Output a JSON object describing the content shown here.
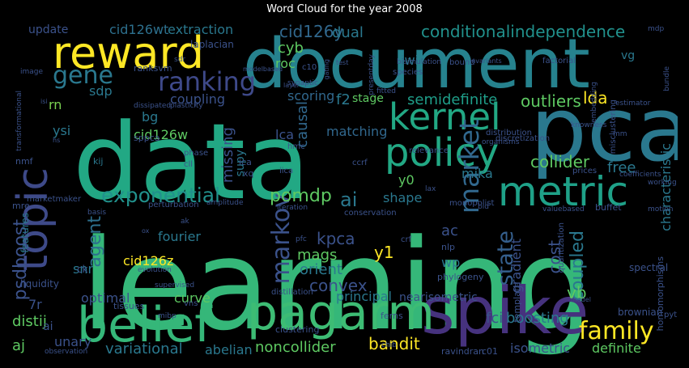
{
  "title": "Word Cloud for the year 2008",
  "colors": {
    "background": "#000000",
    "palette": [
      "#440154",
      "#3b528b",
      "#21918c",
      "#5ec962",
      "#fde725"
    ]
  },
  "words": [
    {
      "text": "learning",
      "color": "#35b779"
    },
    {
      "text": "data",
      "color": "#22a884"
    },
    {
      "text": "document",
      "color": "#26828e"
    },
    {
      "text": "pca",
      "color": "#2a788e"
    },
    {
      "text": "spike",
      "color": "#46327e"
    },
    {
      "text": "reward",
      "color": "#fde725"
    },
    {
      "text": "topic",
      "color": "#3e4a89"
    },
    {
      "text": "pagarm",
      "color": "#3dbc74"
    },
    {
      "text": "belief",
      "color": "#35b779"
    },
    {
      "text": "metric",
      "color": "#1fa188"
    },
    {
      "text": "policy",
      "color": "#22a884"
    },
    {
      "text": "kernel",
      "color": "#22a884"
    },
    {
      "text": "family",
      "color": "#fde725"
    },
    {
      "text": "ranking",
      "color": "#3e4989"
    },
    {
      "text": "gene",
      "color": "#2a788e"
    },
    {
      "text": "market",
      "color": "#31688e"
    },
    {
      "text": "exponential",
      "color": "#21918c"
    },
    {
      "text": "markov",
      "color": "#3b528b"
    },
    {
      "text": "agent",
      "color": "#2d708e"
    },
    {
      "text": "state",
      "color": "#355f8d"
    },
    {
      "text": "pomdp",
      "color": "#5ec962"
    },
    {
      "text": "conditionalindependence",
      "color": "#21918c"
    },
    {
      "text": "cid126y",
      "color": "#31688e"
    },
    {
      "text": "cid126wt",
      "color": "#2d708e"
    },
    {
      "text": "extraction",
      "color": "#2a788e"
    },
    {
      "text": "update",
      "color": "#3b528b"
    },
    {
      "text": "dual",
      "color": "#2a788e"
    },
    {
      "text": "cyb",
      "color": "#5ec962"
    },
    {
      "text": "roc",
      "color": "#5ec962"
    },
    {
      "text": "jwi",
      "color": "#2a788e"
    },
    {
      "text": "sdp",
      "color": "#2a788e"
    },
    {
      "text": "coupling",
      "color": "#3b528b"
    },
    {
      "text": "scoring",
      "color": "#31688e"
    },
    {
      "text": "f2",
      "color": "#2a788e"
    },
    {
      "text": "semidefinite",
      "color": "#1f9e89"
    },
    {
      "text": "outliers",
      "color": "#5ec962"
    },
    {
      "text": "lda",
      "color": "#fde725"
    },
    {
      "text": "cid126w",
      "color": "#5ec962"
    },
    {
      "text": "bg",
      "color": "#2a788e"
    },
    {
      "text": "lca",
      "color": "#3b528b"
    },
    {
      "text": "causal",
      "color": "#31688e"
    },
    {
      "text": "matching",
      "color": "#31688e"
    },
    {
      "text": "rn",
      "color": "#7ad151"
    },
    {
      "text": "ysi",
      "color": "#2a788e"
    },
    {
      "text": "collider",
      "color": "#5ec962"
    },
    {
      "text": "free",
      "color": "#2a788e"
    },
    {
      "text": "missing",
      "color": "#3b528b"
    },
    {
      "text": "mika",
      "color": "#2a788e"
    },
    {
      "text": "ai",
      "color": "#2a788e"
    },
    {
      "text": "shape",
      "color": "#2a788e"
    },
    {
      "text": "y0",
      "color": "#5ec962"
    },
    {
      "text": "psdboost",
      "color": "#3b528b"
    },
    {
      "text": "fourier",
      "color": "#2a788e"
    },
    {
      "text": "kpca",
      "color": "#3b528b"
    },
    {
      "text": "mags",
      "color": "#5ec962"
    },
    {
      "text": "y1",
      "color": "#fde725"
    },
    {
      "text": "ac",
      "color": "#3b528b"
    },
    {
      "text": "wp",
      "color": "#2a788e"
    },
    {
      "text": "coupled",
      "color": "#2a788e"
    },
    {
      "text": "cost",
      "color": "#3b528b"
    },
    {
      "text": "gradient",
      "color": "#3b528b"
    },
    {
      "text": "snr",
      "color": "#2a788e"
    },
    {
      "text": "cid126z",
      "color": "#fde725"
    },
    {
      "text": "orient",
      "color": "#2a788e"
    },
    {
      "text": "convex",
      "color": "#3b528b"
    },
    {
      "text": "vb",
      "color": "#5ec962"
    },
    {
      "text": "optimal",
      "color": "#3b528b"
    },
    {
      "text": "curve",
      "color": "#5ec962"
    },
    {
      "text": "principal",
      "color": "#2a788e"
    },
    {
      "text": "nearisometric",
      "color": "#3b528b"
    },
    {
      "text": "distij",
      "color": "#5ec962"
    },
    {
      "text": "variational",
      "color": "#2a788e"
    },
    {
      "text": "abelian",
      "color": "#2a788e"
    },
    {
      "text": "noncollider",
      "color": "#5ec962"
    },
    {
      "text": "bandit",
      "color": "#fde725"
    },
    {
      "text": "fci",
      "color": "#3b528b"
    },
    {
      "text": "boosting",
      "color": "#2a788e"
    },
    {
      "text": "isometric",
      "color": "#3b528b"
    },
    {
      "text": "definite",
      "color": "#5ec962"
    },
    {
      "text": "aj",
      "color": "#5ec962"
    },
    {
      "text": "unary",
      "color": "#3b528b"
    },
    {
      "text": "characteristic",
      "color": "#2a788e"
    },
    {
      "text": "vg",
      "color": "#2a788e"
    },
    {
      "text": "laplacian",
      "color": "#3b528b"
    },
    {
      "text": "ranksvm",
      "color": "#3b528b"
    },
    {
      "text": "stage",
      "color": "#5ec962"
    },
    {
      "text": "supy",
      "color": "#2a788e"
    },
    {
      "text": "liquidity",
      "color": "#3b528b"
    },
    {
      "text": "tissues",
      "color": "#3b528b"
    },
    {
      "text": "brownian",
      "color": "#3b528b"
    },
    {
      "text": "phylogeny",
      "color": "#3b528b"
    },
    {
      "text": "spectral",
      "color": "#3b528b"
    },
    {
      "text": "ferns",
      "color": "#3b528b"
    },
    {
      "text": "ravindran",
      "color": "#3b528b"
    },
    {
      "text": "c01",
      "color": "#3b528b"
    },
    {
      "text": "mre",
      "color": "#3b528b"
    },
    {
      "text": "features",
      "color": "#2a788e"
    },
    {
      "text": "clustering",
      "color": "#3b528b"
    },
    {
      "text": "distillation",
      "color": "#3b528b"
    },
    {
      "text": "template",
      "color": "#3b528b"
    },
    {
      "text": "quantization",
      "color": "#3b528b"
    },
    {
      "text": "sppca",
      "color": "#3b528b"
    },
    {
      "text": "kij",
      "color": "#2a788e"
    },
    {
      "text": "nmf",
      "color": "#3b528b"
    },
    {
      "text": "phase",
      "color": "#3b528b"
    },
    {
      "text": "cll",
      "color": "#3b528b"
    },
    {
      "text": "ica",
      "color": "#3b528b"
    },
    {
      "text": "xq",
      "color": "#3b528b"
    },
    {
      "text": "hmc",
      "color": "#3b528b"
    },
    {
      "text": "iica",
      "color": "#3b528b"
    },
    {
      "text": "ccrf",
      "color": "#3b528b"
    },
    {
      "text": "relevance",
      "color": "#3b528b"
    },
    {
      "text": "distribution",
      "color": "#3b528b"
    },
    {
      "text": "organisms",
      "color": "#3b528b"
    },
    {
      "text": "prices",
      "color": "#3b528b"
    },
    {
      "text": "coefficients",
      "color": "#3b528b"
    },
    {
      "text": "working",
      "color": "#3b528b"
    },
    {
      "text": "motion",
      "color": "#3b528b"
    },
    {
      "text": "marketmaker",
      "color": "#3b528b"
    },
    {
      "text": "perturbation",
      "color": "#3b528b"
    },
    {
      "text": "amplitude",
      "color": "#3b528b"
    },
    {
      "text": "iteration",
      "color": "#3b528b"
    },
    {
      "text": "conservation",
      "color": "#3b528b"
    },
    {
      "text": "monopolist",
      "color": "#3b528b"
    },
    {
      "text": "lax",
      "color": "#3b528b"
    },
    {
      "text": "bid",
      "color": "#3b528b"
    },
    {
      "text": "valuebased",
      "color": "#3b528b"
    },
    {
      "text": "buffet",
      "color": "#3b528b"
    },
    {
      "text": "discretization",
      "color": "#3b528b"
    },
    {
      "text": "basis",
      "color": "#3b528b"
    },
    {
      "text": "nlp",
      "color": "#3b528b"
    },
    {
      "text": "crf",
      "color": "#3b528b"
    },
    {
      "text": "pfc",
      "color": "#3b528b"
    },
    {
      "text": "ck",
      "color": "#3b528b"
    },
    {
      "text": "evolution",
      "color": "#3b528b"
    },
    {
      "text": "supervised",
      "color": "#3b528b"
    },
    {
      "text": "mibp",
      "color": "#3b528b"
    },
    {
      "text": "vns",
      "color": "#3b528b"
    },
    {
      "text": "homomorphisms",
      "color": "#3b528b"
    },
    {
      "text": "pyt",
      "color": "#3b528b"
    },
    {
      "text": "model",
      "color": "#3b528b"
    },
    {
      "text": "chib",
      "color": "#3b528b"
    },
    {
      "text": "observation",
      "color": "#3b528b"
    },
    {
      "text": "transformational",
      "color": "#3b528b"
    },
    {
      "text": "image",
      "color": "#3b528b"
    },
    {
      "text": "isi",
      "color": "#3b528b"
    },
    {
      "text": "hs",
      "color": "#3b528b"
    },
    {
      "text": "sdr",
      "color": "#3b528b"
    },
    {
      "text": "plasticity",
      "color": "#3b528b"
    },
    {
      "text": "dissipated",
      "color": "#3b528b"
    },
    {
      "text": "synaptic",
      "color": "#3b528b"
    },
    {
      "text": "layer",
      "color": "#3b528b"
    },
    {
      "text": "c10",
      "color": "#3b528b"
    },
    {
      "text": "test",
      "color": "#3b528b"
    },
    {
      "text": "gating",
      "color": "#3b528b"
    },
    {
      "text": "modelbased",
      "color": "#3b528b"
    },
    {
      "text": "species",
      "color": "#3b528b"
    },
    {
      "text": "presentday",
      "color": "#3b528b"
    },
    {
      "text": "bisimulation",
      "color": "#3b528b"
    },
    {
      "text": "bound",
      "color": "#3b528b"
    },
    {
      "text": "invariants",
      "color": "#3b528b"
    },
    {
      "text": "factorial",
      "color": "#3b528b"
    },
    {
      "text": "mdp",
      "color": "#3b528b"
    },
    {
      "text": "misclustering",
      "color": "#3b528b"
    },
    {
      "text": "embedding",
      "color": "#3b528b"
    },
    {
      "text": "estimator",
      "color": "#3b528b"
    },
    {
      "text": "bundle",
      "color": "#3b528b"
    },
    {
      "text": "knowness",
      "color": "#3b528b"
    },
    {
      "text": "mm",
      "color": "#3b528b"
    },
    {
      "text": "fitted",
      "color": "#3b528b"
    },
    {
      "text": "ak",
      "color": "#3b528b"
    },
    {
      "text": "ox",
      "color": "#3b528b"
    },
    {
      "text": "ai",
      "color": "#3b528b"
    },
    {
      "text": "7r",
      "color": "#3b528b"
    }
  ]
}
